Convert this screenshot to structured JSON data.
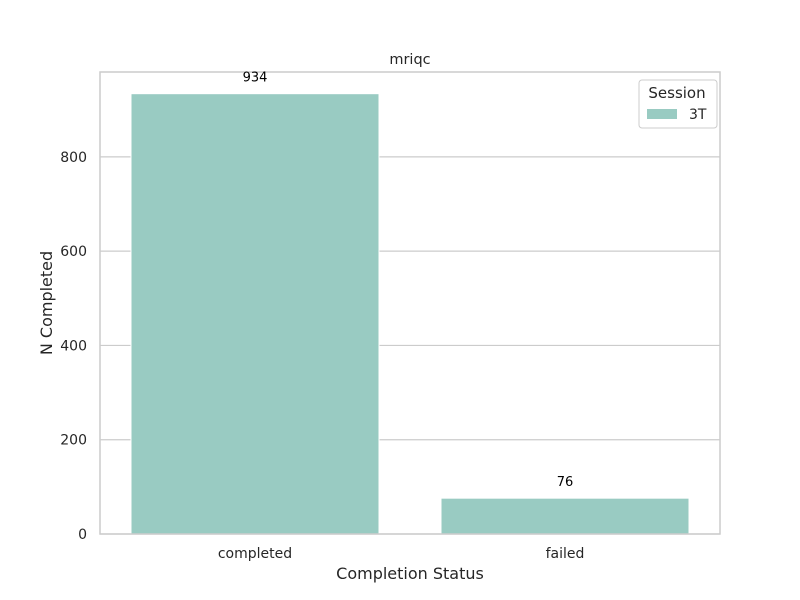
{
  "chart_data": {
    "type": "bar",
    "title": "mriqc",
    "xlabel": "Completion Status",
    "ylabel": "N Completed",
    "categories": [
      "completed",
      "failed"
    ],
    "series": [
      {
        "name": "3T",
        "values": [
          934,
          76
        ]
      }
    ],
    "data_labels": [
      "934",
      "76"
    ],
    "ylim": [
      0,
      980
    ],
    "yticks": [
      0,
      200,
      400,
      600,
      800
    ],
    "ytick_labels": [
      "0",
      "200",
      "400",
      "600",
      "800"
    ],
    "grid": "y",
    "legend": {
      "title": "Session",
      "position": "top-right"
    },
    "colors": {
      "bar": "#99cbc2",
      "grid": "#cccccc",
      "frame": "#cccccc"
    }
  }
}
